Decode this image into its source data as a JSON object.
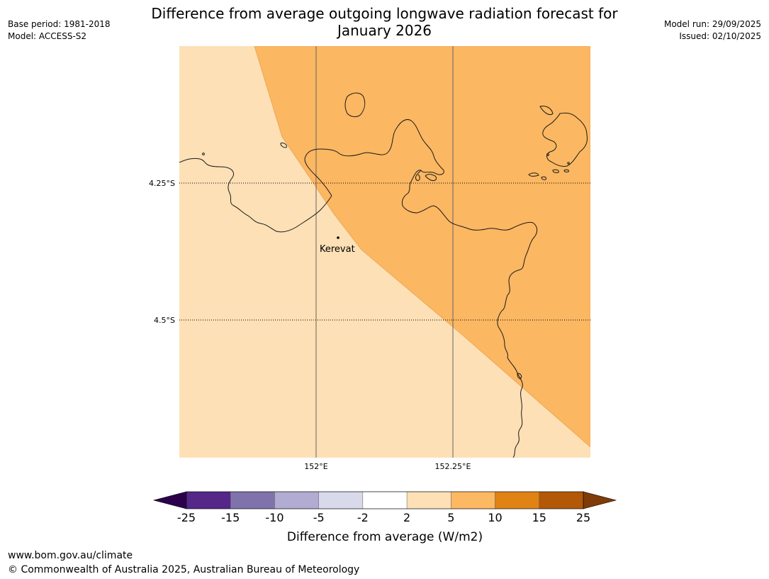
{
  "header": {
    "title_line1": "Difference from average outgoing longwave radiation forecast for",
    "title_line2": "January 2026",
    "base_period": "Base period: 1981-2018",
    "model": "Model: ACCESS-S2",
    "model_run": "Model run: 29/09/2025",
    "issued": "Issued: 02/10/2025"
  },
  "map": {
    "lat_labels": [
      "4.25°S",
      "4.5°S"
    ],
    "lon_labels": [
      "152°E",
      "152.25°E"
    ],
    "place_label": "Kerevat",
    "regions": [
      {
        "name": "2 to 5 W/m2",
        "color": "#fde0b6"
      },
      {
        "name": "5 to 10 W/m2",
        "color": "#fbb762"
      }
    ]
  },
  "colorbar": {
    "label": "Difference from average (W/m2)",
    "ticks": [
      "-25",
      "-15",
      "-10",
      "-5",
      "-2",
      "2",
      "5",
      "10",
      "15",
      "25"
    ],
    "colors": [
      "#542788",
      "#8073ac",
      "#b2abd2",
      "#d8daeb",
      "#ffffff",
      "#fee0b6",
      "#fdb863",
      "#e08214",
      "#b35806"
    ],
    "under_color": "#2d004b",
    "over_color": "#7f3b08"
  },
  "footer": {
    "url": "www.bom.gov.au/climate",
    "copyright": "© Commonwealth of Australia 2025, Australian Bureau of Meteorology"
  }
}
